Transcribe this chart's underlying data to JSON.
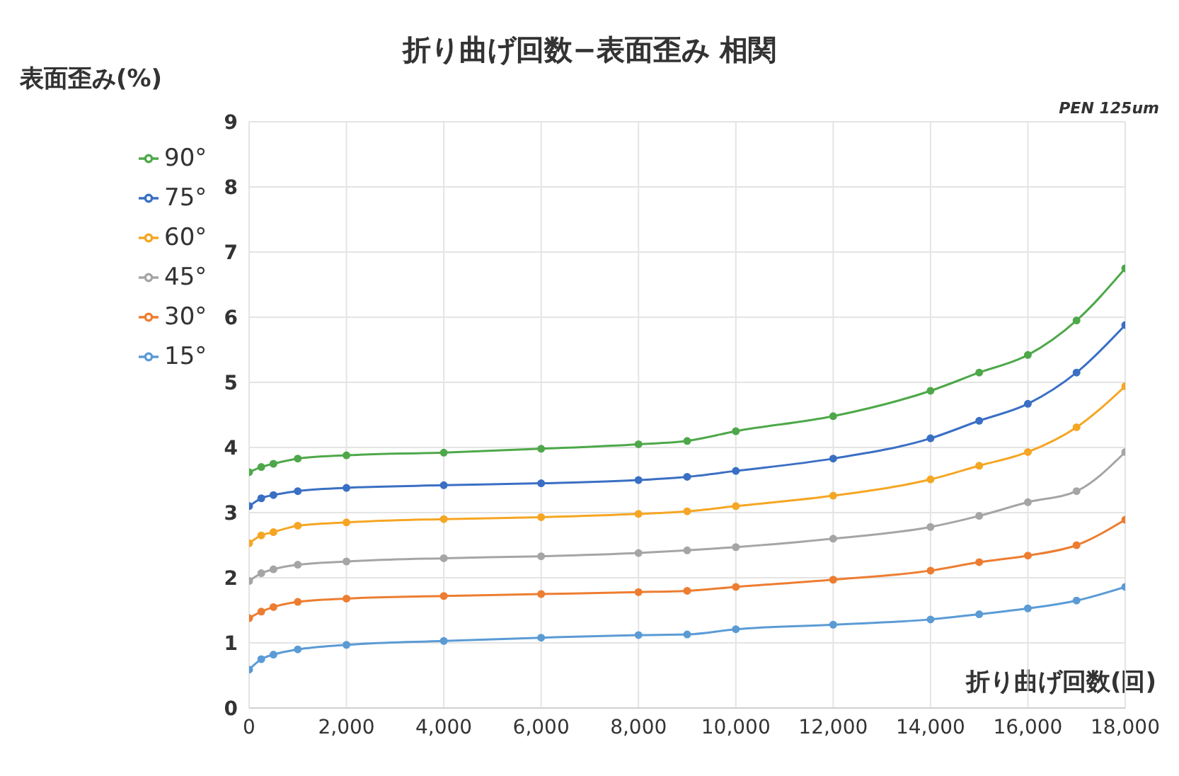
{
  "chart_data": {
    "type": "line",
    "title": "折り曲げ回数−表面歪み 相関",
    "ylabel": "表面歪み(%)",
    "xlabel": "折り曲げ回数(回)",
    "annotations": [
      "PEN 125um"
    ],
    "x": [
      0,
      250,
      500,
      1000,
      2000,
      4000,
      6000,
      8000,
      9000,
      10000,
      12000,
      14000,
      15000,
      16000,
      17000,
      18000
    ],
    "series": [
      {
        "name": "90°",
        "color": "#4ea84a",
        "values": [
          3.62,
          3.7,
          3.75,
          3.83,
          3.88,
          3.92,
          3.98,
          4.05,
          4.1,
          4.25,
          4.48,
          4.87,
          5.15,
          5.42,
          5.95,
          6.75
        ]
      },
      {
        "name": "75°",
        "color": "#3a6fc4",
        "values": [
          3.1,
          3.22,
          3.27,
          3.33,
          3.38,
          3.42,
          3.45,
          3.5,
          3.55,
          3.64,
          3.83,
          4.14,
          4.41,
          4.67,
          5.15,
          5.88
        ]
      },
      {
        "name": "60°",
        "color": "#f5a623",
        "values": [
          2.53,
          2.65,
          2.7,
          2.8,
          2.85,
          2.9,
          2.93,
          2.98,
          3.02,
          3.1,
          3.26,
          3.51,
          3.72,
          3.93,
          4.31,
          4.94
        ]
      },
      {
        "name": "45°",
        "color": "#a5a5a5",
        "values": [
          1.95,
          2.07,
          2.13,
          2.2,
          2.25,
          2.3,
          2.33,
          2.38,
          2.42,
          2.47,
          2.6,
          2.78,
          2.95,
          3.16,
          3.33,
          3.93
        ]
      },
      {
        "name": "30°",
        "color": "#ed7d31",
        "values": [
          1.38,
          1.48,
          1.55,
          1.63,
          1.68,
          1.72,
          1.75,
          1.78,
          1.8,
          1.86,
          1.97,
          2.11,
          2.24,
          2.34,
          2.5,
          2.89
        ]
      },
      {
        "name": "15°",
        "color": "#5b9bd5",
        "values": [
          0.59,
          0.75,
          0.82,
          0.9,
          0.97,
          1.03,
          1.08,
          1.12,
          1.13,
          1.21,
          1.28,
          1.36,
          1.44,
          1.53,
          1.65,
          1.86
        ]
      }
    ],
    "xlim": [
      0,
      18000
    ],
    "xticks": [
      0,
      {
        "value": 2000,
        "label": "2,000"
      },
      {
        "value": 4000,
        "label": "4,000"
      },
      {
        "value": 6000,
        "label": "6,000"
      },
      {
        "value": 8000,
        "label": "8,000"
      },
      {
        "value": 10000,
        "label": "10,000"
      },
      {
        "value": 12000,
        "label": "12,000"
      },
      {
        "value": 14000,
        "label": "14,000"
      },
      {
        "value": 16000,
        "label": "16,000"
      },
      {
        "value": 18000,
        "label": "18,000"
      }
    ],
    "ylim": [
      0,
      9
    ],
    "yticks": [
      0,
      1,
      2,
      3,
      4,
      5,
      6,
      7,
      8,
      9
    ],
    "grid": true,
    "legend": "top left",
    "marker": "circle",
    "line_style": "solid"
  }
}
